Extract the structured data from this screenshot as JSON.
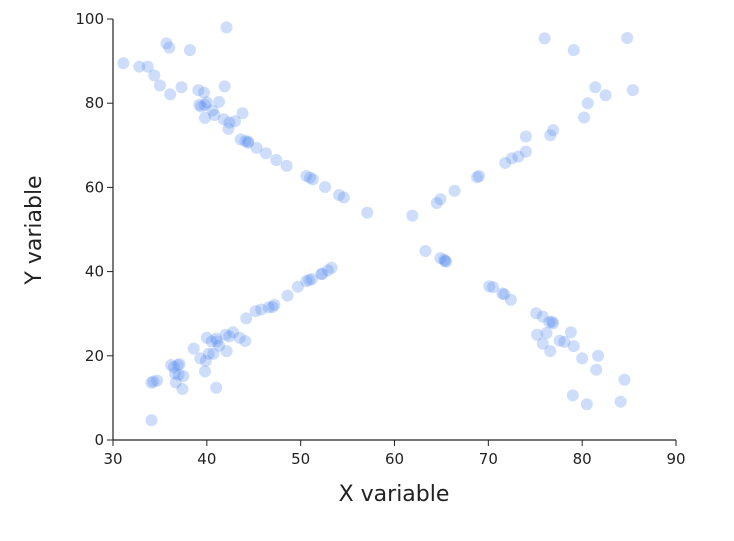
{
  "chart_data": {
    "type": "scatter",
    "xlabel": "X variable",
    "ylabel": "Y variable",
    "color": "#5b8def",
    "xlim": [
      30,
      90
    ],
    "ylim": [
      0,
      100
    ],
    "xticks": [
      30,
      40,
      50,
      60,
      70,
      80,
      90
    ],
    "yticks": [
      0,
      20,
      40,
      60,
      80,
      100
    ],
    "x": [
      31.1,
      32.8,
      33.7,
      34.4,
      35.0,
      35.7,
      36.0,
      36.1,
      37.3,
      38.2,
      39.1,
      39.2,
      39.4,
      39.7,
      39.8,
      40.0,
      39.8,
      40.6,
      40.8,
      41.3,
      41.8,
      41.9,
      42.1,
      42.3,
      42.4,
      43.0,
      43.6,
      43.8,
      44.1,
      44.4,
      44.4,
      45.3,
      46.3,
      47.4,
      48.5,
      50.6,
      51.0,
      51.3,
      52.6,
      54.1,
      54.6,
      57.1,
      61.9,
      64.5,
      64.9,
      66.4,
      68.8,
      69.0,
      71.8,
      72.5,
      73.2,
      74.0,
      74.0,
      76.0,
      76.6,
      76.9,
      79.1,
      80.2,
      80.6,
      81.4,
      82.5,
      84.8,
      85.4,
      34.1,
      34.1,
      34.3,
      34.7,
      36.2,
      36.5,
      36.6,
      36.7,
      36.9,
      37.0,
      37.1,
      37.4,
      37.5,
      38.6,
      39.3,
      39.8,
      39.9,
      40.0,
      40.2,
      40.5,
      40.7,
      41.0,
      41.0,
      41.1,
      41.3,
      42.0,
      42.1,
      42.4,
      42.8,
      43.5,
      44.1,
      44.2,
      45.2,
      45.8,
      46.6,
      47.0,
      47.2,
      48.6,
      49.7,
      50.6,
      50.9,
      51.2,
      52.2,
      52.3,
      52.9,
      53.3,
      63.3,
      64.9,
      65.3,
      65.4,
      65.5,
      70.1,
      70.5,
      71.5,
      71.7,
      72.4,
      75.1,
      75.2,
      75.8,
      75.8,
      76.2,
      76.5,
      76.6,
      76.8,
      76.9,
      77.6,
      78.1,
      78.8,
      79.1,
      79.0,
      80.0,
      80.5,
      81.5,
      81.7,
      84.1,
      84.5
    ],
    "y": [
      89.5,
      88.7,
      88.7,
      86.6,
      84.2,
      94.2,
      93.2,
      82.1,
      83.8,
      92.6,
      83.1,
      79.6,
      79.2,
      82.5,
      79.6,
      80.2,
      76.5,
      78.3,
      77.2,
      80.3,
      76.2,
      84.0,
      98.0,
      73.9,
      75.4,
      75.7,
      71.4,
      77.6,
      71.0,
      70.6,
      70.9,
      69.4,
      68.1,
      66.5,
      65.1,
      62.7,
      62.3,
      61.9,
      60.1,
      58.2,
      57.6,
      54.0,
      53.3,
      56.3,
      57.2,
      59.2,
      62.4,
      62.7,
      65.8,
      66.9,
      67.3,
      68.5,
      72.1,
      95.4,
      72.4,
      73.6,
      92.6,
      76.6,
      80.0,
      83.8,
      81.9,
      95.5,
      83.1,
      4.7,
      13.6,
      13.9,
      14.1,
      17.8,
      17.3,
      15.8,
      13.7,
      17.8,
      15.5,
      18.0,
      12.1,
      15.2,
      21.7,
      19.4,
      16.3,
      18.8,
      24.3,
      20.5,
      23.4,
      20.5,
      24.1,
      12.4,
      23.4,
      22.4,
      25.0,
      21.1,
      24.6,
      25.6,
      24.3,
      23.5,
      28.9,
      30.6,
      31.0,
      31.5,
      31.6,
      32.1,
      34.3,
      36.4,
      37.7,
      38.0,
      38.2,
      39.4,
      39.5,
      40.3,
      40.9,
      44.9,
      43.2,
      42.8,
      42.5,
      42.4,
      36.5,
      36.3,
      34.8,
      34.6,
      33.3,
      30.1,
      25.0,
      29.3,
      22.9,
      25.4,
      28.0,
      21.1,
      28.1,
      27.7,
      23.6,
      23.3,
      25.6,
      22.3,
      10.6,
      19.4,
      8.5,
      16.7,
      20.0,
      9.1,
      14.3
    ]
  }
}
